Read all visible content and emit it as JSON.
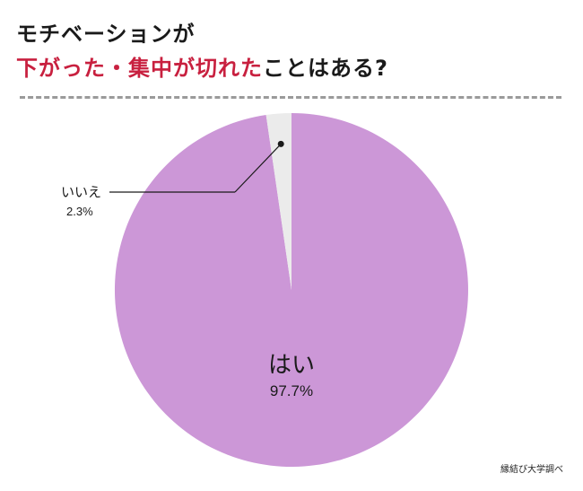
{
  "title": {
    "line1": "モチベーションが",
    "line2_accent": "下がった・集中が切れた",
    "line2_rest": "ことはある?"
  },
  "source": "縁結び大学調べ",
  "colors": {
    "accent": "#c8203f",
    "yes_slice": "#cc97d7",
    "no_slice": "#ebebeb",
    "text": "#1a1a1a"
  },
  "chart_data": {
    "type": "pie",
    "title": "",
    "slices": [
      {
        "label": "はい",
        "value": 97.7,
        "value_label": "97.7%"
      },
      {
        "label": "いいえ",
        "value": 2.3,
        "value_label": "2.3%"
      }
    ],
    "start": "12 o'clock",
    "direction": "clockwise",
    "legend": "none"
  }
}
